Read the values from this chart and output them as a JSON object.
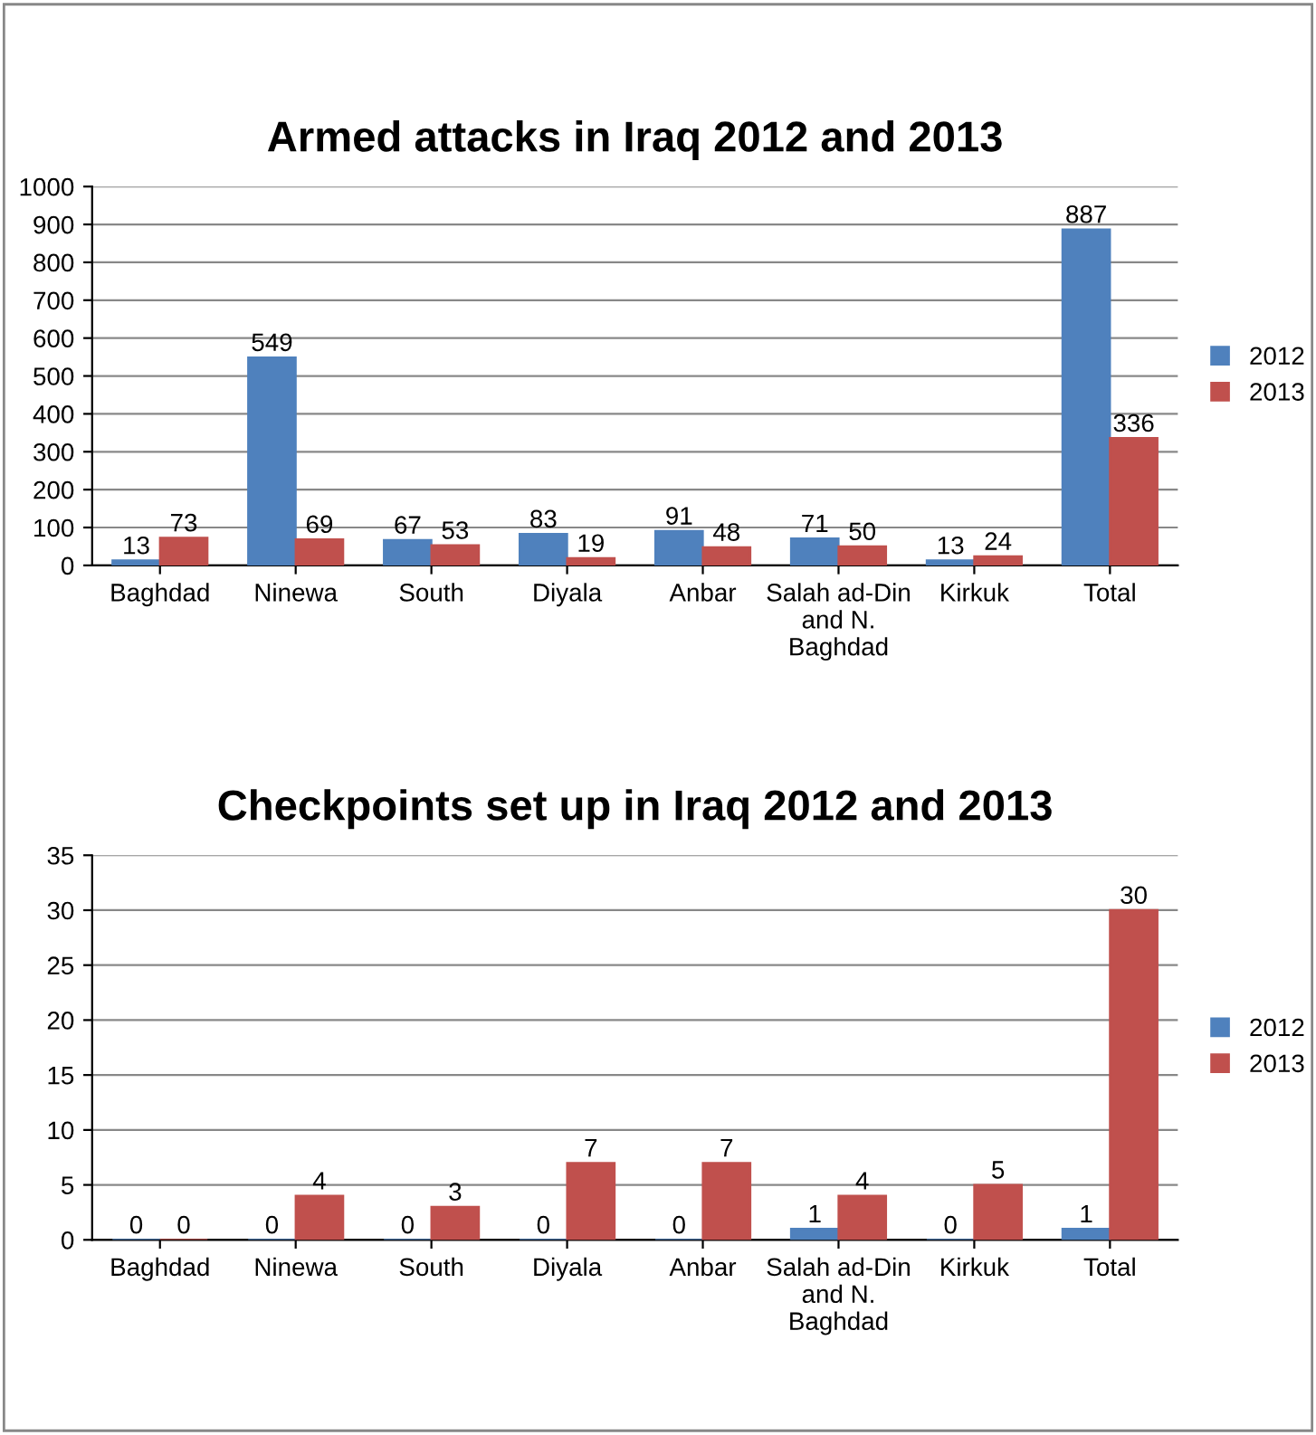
{
  "chart_data": [
    {
      "type": "bar",
      "title": "Armed attacks in Iraq 2012 and 2013",
      "categories": [
        "Baghdad",
        "Ninewa",
        "South",
        "Diyala",
        "Anbar",
        "Salah ad-Din\nand N.\nBaghdad",
        "Kirkuk",
        "Total"
      ],
      "series": [
        {
          "name": "2012",
          "color": "#4f81bd",
          "values": [
            13,
            549,
            67,
            83,
            91,
            71,
            13,
            887
          ]
        },
        {
          "name": "2013",
          "color": "#c0504d",
          "values": [
            73,
            69,
            53,
            19,
            48,
            50,
            24,
            336
          ]
        }
      ],
      "ylim": [
        0,
        1000
      ],
      "yticks": [
        0,
        100,
        200,
        300,
        400,
        500,
        600,
        700,
        800,
        900,
        1000
      ],
      "grid": "y",
      "legend": "right",
      "data_labels": true
    },
    {
      "type": "bar",
      "title": "Checkpoints set up in Iraq 2012 and 2013",
      "categories": [
        "Baghdad",
        "Ninewa",
        "South",
        "Diyala",
        "Anbar",
        "Salah ad-Din\nand N.\nBaghdad",
        "Kirkuk",
        "Total"
      ],
      "series": [
        {
          "name": "2012",
          "color": "#4f81bd",
          "values": [
            0,
            0,
            0,
            0,
            0,
            1,
            0,
            1
          ]
        },
        {
          "name": "2013",
          "color": "#c0504d",
          "values": [
            0,
            4,
            3,
            7,
            7,
            4,
            5,
            30
          ]
        }
      ],
      "ylim": [
        0,
        35
      ],
      "yticks": [
        0,
        5,
        10,
        15,
        20,
        25,
        30,
        35
      ],
      "grid": "y",
      "legend": "right",
      "data_labels": true
    }
  ]
}
